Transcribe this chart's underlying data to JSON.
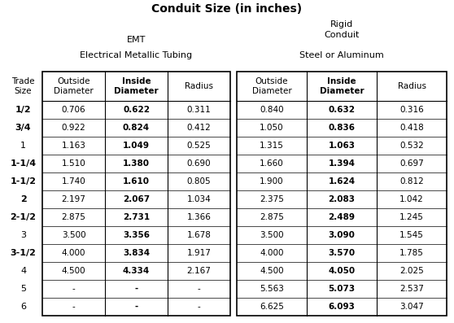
{
  "title": "Conduit Size (in inches)",
  "emt_header1": "EMT",
  "emt_header2": "Electrical Metallic Tubing",
  "rigid_header1": "Rigid\nConduit",
  "rigid_header2": "Steel or Aluminum",
  "col_headers": [
    "Outside\nDiameter",
    "Inside\nDiameter",
    "Radius"
  ],
  "trade_sizes": [
    "1/2",
    "3/4",
    "1",
    "1-1/4",
    "1-1/2",
    "2",
    "2-1/2",
    "3",
    "3-1/2",
    "4",
    "5",
    "6"
  ],
  "trade_bold": [
    true,
    true,
    false,
    true,
    true,
    true,
    true,
    false,
    true,
    false,
    false,
    false
  ],
  "emt_data": [
    [
      "0.706",
      "0.622",
      "0.311"
    ],
    [
      "0.922",
      "0.824",
      "0.412"
    ],
    [
      "1.163",
      "1.049",
      "0.525"
    ],
    [
      "1.510",
      "1.380",
      "0.690"
    ],
    [
      "1.740",
      "1.610",
      "0.805"
    ],
    [
      "2.197",
      "2.067",
      "1.034"
    ],
    [
      "2.875",
      "2.731",
      "1.366"
    ],
    [
      "3.500",
      "3.356",
      "1.678"
    ],
    [
      "4.000",
      "3.834",
      "1.917"
    ],
    [
      "4.500",
      "4.334",
      "2.167"
    ],
    [
      "-",
      "-",
      "-"
    ],
    [
      "-",
      "-",
      "-"
    ]
  ],
  "rigid_data": [
    [
      "0.840",
      "0.632",
      "0.316"
    ],
    [
      "1.050",
      "0.836",
      "0.418"
    ],
    [
      "1.315",
      "1.063",
      "0.532"
    ],
    [
      "1.660",
      "1.394",
      "0.697"
    ],
    [
      "1.900",
      "1.624",
      "0.812"
    ],
    [
      "2.375",
      "2.083",
      "1.042"
    ],
    [
      "2.875",
      "2.489",
      "1.245"
    ],
    [
      "3.500",
      "3.090",
      "1.545"
    ],
    [
      "4.000",
      "3.570",
      "1.785"
    ],
    [
      "4.500",
      "4.050",
      "2.025"
    ],
    [
      "5.563",
      "5.073",
      "2.537"
    ],
    [
      "6.625",
      "6.093",
      "3.047"
    ]
  ],
  "bg_color": "#ffffff",
  "text_color": "#000000",
  "title_fontsize": 10,
  "header_fontsize": 8,
  "col_header_fontsize": 7.5,
  "cell_fontsize": 7.5,
  "trade_fontsize": 8
}
